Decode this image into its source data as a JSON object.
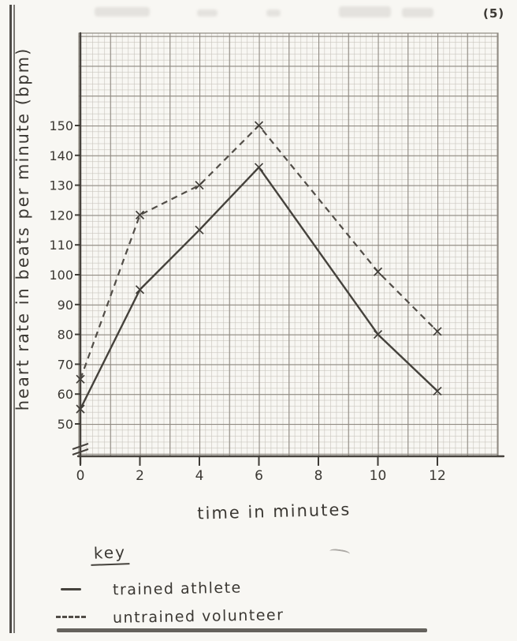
{
  "page": {
    "marks_label": "(5)",
    "key_title": "key"
  },
  "chart_data": {
    "type": "line",
    "xlabel": "time in minutes",
    "ylabel": "heart rate in beats per minute (bpm)",
    "x_ticks": [
      0,
      2,
      4,
      6,
      8,
      10,
      12
    ],
    "y_ticks": [
      50,
      60,
      70,
      80,
      90,
      100,
      110,
      120,
      130,
      140,
      150
    ],
    "xlim": [
      0,
      14
    ],
    "ylim": [
      50,
      180
    ],
    "y_axis_break": true,
    "grid": true,
    "legend_position": "below",
    "marker": "x",
    "series": [
      {
        "name": "trained athlete",
        "style": "solid",
        "x": [
          0,
          2,
          4,
          6,
          10,
          12
        ],
        "y": [
          55,
          95,
          115,
          136,
          80,
          61
        ]
      },
      {
        "name": "untrained volunteer",
        "style": "dashed",
        "x": [
          0,
          2,
          4,
          6,
          10,
          12
        ],
        "y": [
          65,
          120,
          130,
          150,
          101,
          81
        ]
      }
    ]
  }
}
